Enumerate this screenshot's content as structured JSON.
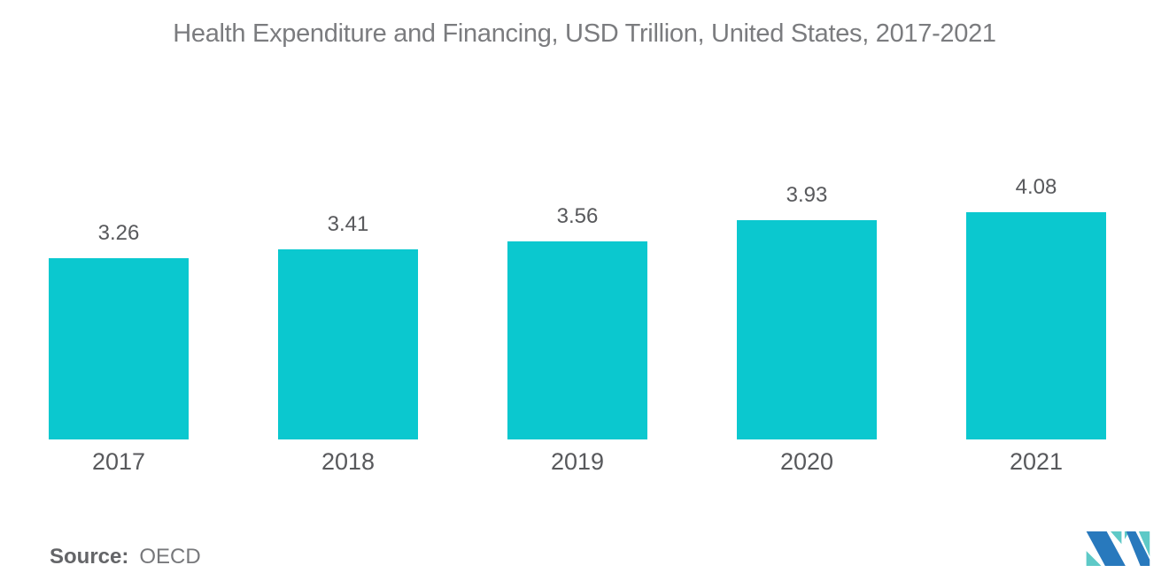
{
  "chart_data": {
    "type": "bar",
    "title": "Health Expenditure and Financing, USD Trillion, United States, 2017-2021",
    "categories": [
      "2017",
      "2018",
      "2019",
      "2020",
      "2021"
    ],
    "values": [
      3.26,
      3.41,
      3.56,
      3.93,
      4.08
    ],
    "value_labels": [
      "3.26",
      "3.41",
      "3.56",
      "3.93",
      "4.08"
    ],
    "xlabel": "",
    "ylabel": "",
    "ylim": [
      0,
      4.08
    ],
    "grid": false,
    "legend_position": "none",
    "bar_color": "#0bc8cf",
    "label_color": "#58595c",
    "title_color": "#7b7c7f"
  },
  "source": {
    "label": "Source:",
    "value": "OECD"
  },
  "logo": {
    "name": "mordor-intelligence-logo",
    "blue": "#2879bd",
    "teal": "#5ec9c7"
  }
}
